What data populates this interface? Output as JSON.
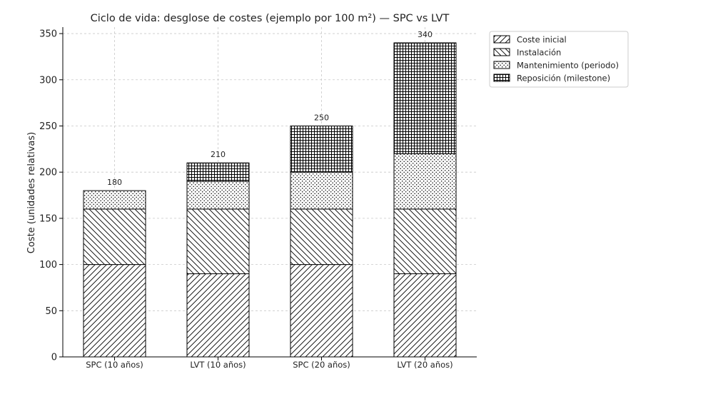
{
  "chart_data": {
    "type": "bar",
    "stacked": true,
    "title": "Ciclo de vida: desglose de costes (ejemplo por 100 m²) — SPC vs LVT",
    "xlabel": "",
    "ylabel": "Coste (unidades relativas)",
    "ylim": [
      0,
      357
    ],
    "yticks": [
      "0",
      "50",
      "100",
      "150",
      "200",
      "250",
      "300",
      "350"
    ],
    "grid": true,
    "legend_position": "outside-right-top",
    "categories": [
      "SPC (10 años)",
      "LVT (10 años)",
      "SPC (20 años)",
      "LVT (20 años)"
    ],
    "series": [
      {
        "name": "Coste inicial",
        "pattern": "diagonal-forward",
        "values": [
          100,
          90,
          100,
          90
        ]
      },
      {
        "name": "Instalación",
        "pattern": "diagonal-back",
        "values": [
          60,
          70,
          60,
          70
        ]
      },
      {
        "name": "Mantenimiento (periodo)",
        "pattern": "dots",
        "values": [
          20,
          30,
          40,
          60
        ]
      },
      {
        "name": "Reposición (milestone)",
        "pattern": "crosshatch",
        "values": [
          0,
          20,
          50,
          120
        ]
      }
    ],
    "totals": [
      "180",
      "210",
      "250",
      "340"
    ],
    "colors": {
      "bar_fill": "#ffffff",
      "hatch": "#000000",
      "grid": "#c8c8c8"
    }
  }
}
